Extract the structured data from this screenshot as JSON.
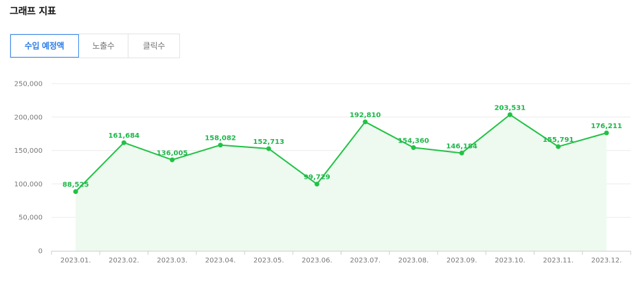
{
  "header": {
    "title": "그래프 지표"
  },
  "tabs": [
    {
      "label": "수입 예정액",
      "active": true
    },
    {
      "label": "노출수",
      "active": false
    },
    {
      "label": "클릭수",
      "active": false
    }
  ],
  "colors": {
    "line": "#21c245",
    "area": "#eefaf0",
    "label": "#1db84a",
    "active_tab": "#2b7de9",
    "grid": "#ebebeb"
  },
  "chart_data": {
    "type": "area",
    "categories": [
      "2023.01.",
      "2023.02.",
      "2023.03.",
      "2023.04.",
      "2023.05.",
      "2023.06.",
      "2023.07.",
      "2023.08.",
      "2023.09.",
      "2023.10.",
      "2023.11.",
      "2023.12."
    ],
    "series": [
      {
        "values": [
          88525,
          161684,
          136005,
          158082,
          152713,
          99729,
          192810,
          154360,
          146184,
          203531,
          155791,
          176211
        ],
        "labels": [
          "88,525",
          "161,684",
          "136,005",
          "158,082",
          "152,713",
          "99,729",
          "192,810",
          "154,360",
          "146,184",
          "203,531",
          "155,791",
          "176,211"
        ]
      }
    ],
    "y_ticks": [
      0,
      50000,
      100000,
      150000,
      200000,
      250000
    ],
    "y_tick_labels": [
      "0",
      "50,000",
      "100,000",
      "150,000",
      "200,000",
      "250,000"
    ],
    "ylim": [
      0,
      250000
    ],
    "grid": true,
    "legend": "none"
  }
}
